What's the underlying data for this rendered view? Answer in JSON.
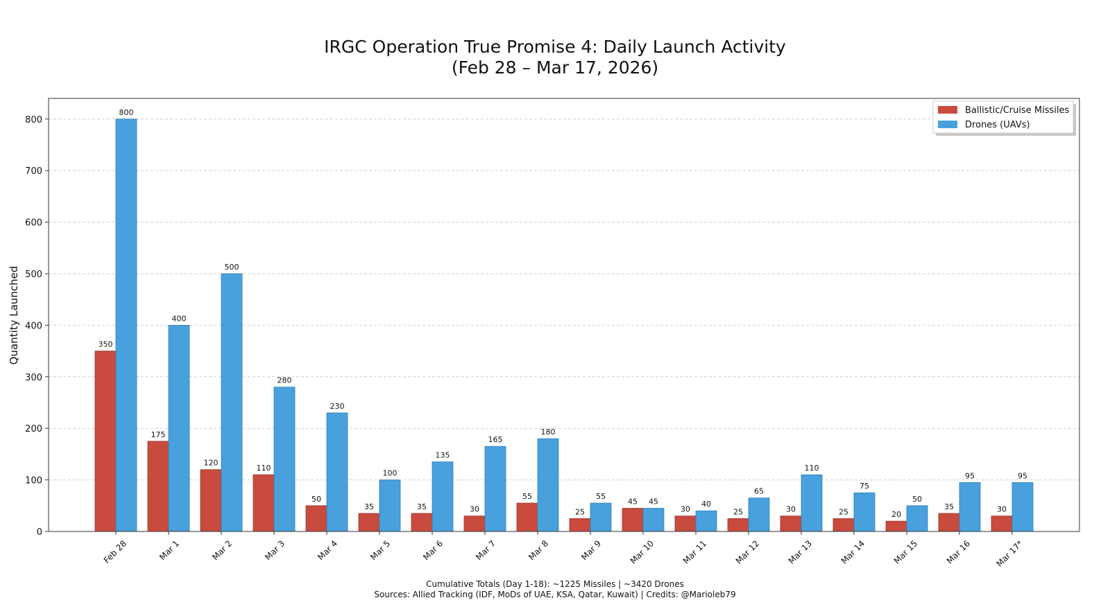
{
  "chart_data": {
    "type": "bar",
    "title": "IRGC Operation True Promise 4: Daily Launch Activity",
    "subtitle": "(Feb 28 – Mar 17, 2026)",
    "xlabel": "",
    "ylabel": "Quantity Launched",
    "ylim": [
      0,
      840
    ],
    "yticks": [
      0,
      100,
      200,
      300,
      400,
      500,
      600,
      700,
      800
    ],
    "grid": "horizontal dashed",
    "legend_position": "top-right",
    "categories": [
      "Feb 28",
      "Mar 1",
      "Mar 2",
      "Mar 3",
      "Mar 4",
      "Mar 5",
      "Mar 6",
      "Mar 7",
      "Mar 8",
      "Mar 9",
      "Mar 10",
      "Mar 11",
      "Mar 12",
      "Mar 13",
      "Mar 14",
      "Mar 15",
      "Mar 16",
      "Mar 17*"
    ],
    "series": [
      {
        "name": "Ballistic/Cruise Missiles",
        "color": "#c84b3e",
        "values": [
          350,
          175,
          120,
          110,
          50,
          35,
          35,
          30,
          55,
          25,
          45,
          30,
          25,
          30,
          25,
          20,
          35,
          30
        ]
      },
      {
        "name": "Drones (UAVs)",
        "color": "#48a1dd",
        "values": [
          800,
          400,
          500,
          280,
          230,
          100,
          135,
          165,
          180,
          55,
          45,
          40,
          65,
          110,
          75,
          50,
          95,
          95
        ]
      }
    ],
    "footer_lines": [
      "Cumulative Totals (Day 1-18): ~1225 Missiles | ~3420 Drones",
      "Sources: Allied Tracking (IDF, MoDs of UAE, KSA, Qatar, Kuwait) | Credits: @Marioleb79"
    ]
  }
}
